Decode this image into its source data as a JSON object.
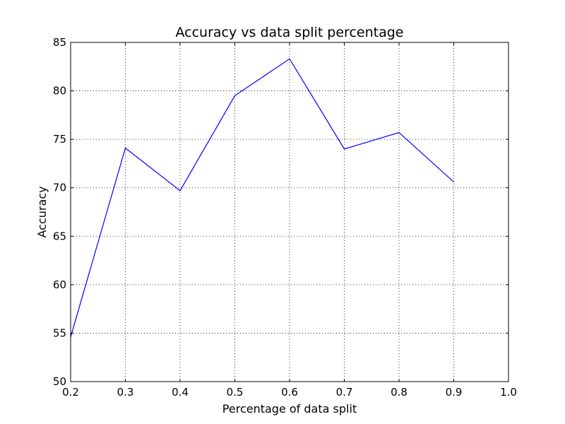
{
  "chart_data": {
    "type": "line",
    "title": "Accuracy vs data split percentage",
    "xlabel": "Percentage of data split",
    "ylabel": "Accuracy",
    "xlim": [
      0.2,
      1.0
    ],
    "ylim": [
      50,
      85
    ],
    "xticks": [
      0.2,
      0.3,
      0.4,
      0.5,
      0.6,
      0.7,
      0.8,
      0.9,
      1.0
    ],
    "xtick_labels": [
      "0.2",
      "0.3",
      "0.4",
      "0.5",
      "0.6",
      "0.7",
      "0.8",
      "0.9",
      "1.0"
    ],
    "yticks": [
      50,
      55,
      60,
      65,
      70,
      75,
      80,
      85
    ],
    "ytick_labels": [
      "50",
      "55",
      "60",
      "65",
      "70",
      "75",
      "80",
      "85"
    ],
    "grid": true,
    "series": [
      {
        "color": "#0000ff",
        "x": [
          0.2,
          0.3,
          0.4,
          0.5,
          0.6,
          0.7,
          0.8,
          0.9
        ],
        "y": [
          54.6,
          74.1,
          69.7,
          79.5,
          83.3,
          74.0,
          75.7,
          70.6
        ]
      }
    ]
  }
}
